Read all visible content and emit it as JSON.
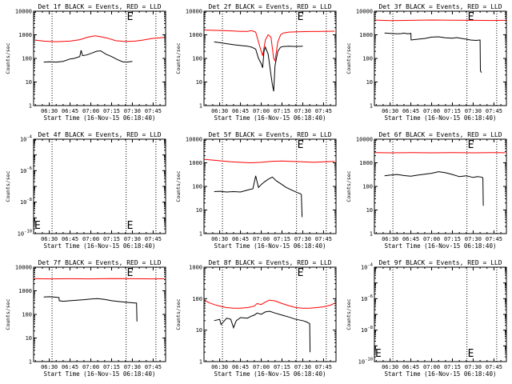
{
  "x_axis": {
    "ticks": [
      {
        "t": 30,
        "label": "06:30"
      },
      {
        "t": 45,
        "label": "06:45"
      },
      {
        "t": 60,
        "label": "07:00"
      },
      {
        "t": 75,
        "label": "07:15"
      },
      {
        "t": 90,
        "label": "07:30"
      },
      {
        "t": 105,
        "label": "07:45"
      }
    ],
    "range_minutes_after_0600": [
      18.67,
      114
    ],
    "minor_step_minutes": 5,
    "xlabel": "Start Time (16-Nov-15 06:18:40)",
    "vlines_minutes_after_0600": [
      32,
      85.5,
      107
    ]
  },
  "ylabel": "Counts/sec",
  "colors": {
    "events": "#000000",
    "lld": "#ff0000",
    "vline": "#000000"
  },
  "chart_data": [
    {
      "type": "line",
      "id": "det1f",
      "title": "Det 1f BLACK = Events, RED = LLD",
      "ylim": [
        1,
        10000
      ],
      "scale": "log",
      "yticks": [
        "1",
        "10",
        "100",
        "1000",
        "10000"
      ],
      "marker": "E",
      "marker_t": 85.5,
      "marker_pos": "top",
      "series": [
        {
          "name": "LLD",
          "color": "#ff0000",
          "x": [
            19,
            26,
            35,
            45,
            52,
            58,
            63,
            67,
            72,
            78,
            85,
            92,
            98,
            104,
            110,
            113
          ],
          "y": [
            600,
            540,
            510,
            540,
            620,
            800,
            900,
            830,
            720,
            560,
            520,
            540,
            600,
            700,
            750,
            780
          ]
        },
        {
          "name": "Events",
          "color": "#000000",
          "x": [
            26,
            30,
            35,
            40,
            45,
            48,
            52,
            53,
            54,
            57,
            61,
            64,
            67,
            71,
            75,
            79,
            83,
            86,
            90
          ],
          "y": [
            70,
            72,
            70,
            75,
            95,
            100,
            120,
            220,
            130,
            140,
            170,
            200,
            210,
            150,
            120,
            90,
            72,
            70,
            75
          ]
        }
      ]
    },
    {
      "type": "line",
      "id": "det2f",
      "title": "Det 2f BLACK = Events, RED = LLD",
      "ylim": [
        1,
        10000
      ],
      "scale": "log",
      "yticks": [
        "1",
        "10",
        "100",
        "1000",
        "10000"
      ],
      "marker": "E",
      "marker_t": 85.5,
      "marker_pos": "top",
      "series": [
        {
          "name": "LLD",
          "color": "#ff0000",
          "x": [
            19,
            25,
            33,
            40,
            45,
            50,
            53,
            56,
            58,
            60,
            61,
            63,
            65,
            67,
            69,
            70,
            72,
            74,
            76,
            80,
            86,
            95,
            105,
            113
          ],
          "y": [
            1600,
            1550,
            1500,
            1450,
            1400,
            1400,
            1500,
            1300,
            500,
            200,
            130,
            600,
            1000,
            800,
            100,
            80,
            500,
            1000,
            1200,
            1300,
            1350,
            1380,
            1400,
            1420
          ]
        },
        {
          "name": "Events",
          "color": "#000000",
          "x": [
            26,
            30,
            35,
            40,
            45,
            50,
            53,
            56,
            58,
            60,
            61,
            62,
            63,
            65,
            67,
            68,
            69,
            70,
            72,
            74,
            76,
            80,
            85,
            90
          ],
          "y": [
            500,
            470,
            420,
            380,
            350,
            330,
            300,
            250,
            100,
            60,
            40,
            200,
            300,
            150,
            20,
            8,
            4,
            50,
            200,
            300,
            320,
            330,
            320,
            330
          ]
        }
      ]
    },
    {
      "type": "line",
      "id": "det3f",
      "title": "Det 3f BLACK = Events, RED = LLD",
      "ylim": [
        1,
        10000
      ],
      "scale": "log",
      "yticks": [
        "1",
        "10",
        "100",
        "1000",
        "10000"
      ],
      "marker": "E",
      "marker_t": 85.5,
      "marker_pos": "top",
      "series": [
        {
          "name": "LLD",
          "color": "#ff0000",
          "x": [
            19,
            30,
            45,
            60,
            75,
            90,
            105,
            113
          ],
          "y": [
            4200,
            4000,
            4100,
            4250,
            4150,
            4100,
            4050,
            4100
          ]
        },
        {
          "name": "Events",
          "color": "#000000",
          "x": [
            26,
            30,
            35,
            38,
            40,
            43,
            45,
            45.2,
            50,
            55,
            60,
            65,
            70,
            75,
            78,
            82,
            85,
            88,
            92,
            95,
            95.2,
            96
          ],
          "y": [
            1200,
            1150,
            1100,
            1120,
            1180,
            1100,
            1150,
            600,
            650,
            700,
            800,
            820,
            750,
            720,
            760,
            700,
            650,
            600,
            580,
            600,
            30,
            25
          ]
        }
      ]
    },
    {
      "type": "line",
      "id": "det4f",
      "title": "Det 4f BLACK = Events, RED = LLD",
      "ylim": [
        1e-10,
        0.0001
      ],
      "scale": "log",
      "yticks": [
        "10^-10",
        "10^-8",
        "10^-6",
        "10^-4"
      ],
      "marker": "E",
      "marker_t": 85.5,
      "marker_pos": "bottom",
      "series": []
    },
    {
      "type": "line",
      "id": "det5f",
      "title": "Det 5f BLACK = Events, RED = LLD",
      "ylim": [
        1,
        10000
      ],
      "scale": "log",
      "yticks": [
        "1",
        "10",
        "100",
        "1000",
        "10000"
      ],
      "marker": "E",
      "marker_t": 85.5,
      "marker_pos": "top",
      "series": [
        {
          "name": "LLD",
          "color": "#ff0000",
          "x": [
            19,
            25,
            32,
            38,
            45,
            52,
            60,
            67,
            75,
            82,
            90,
            98,
            105,
            113
          ],
          "y": [
            1400,
            1300,
            1200,
            1100,
            1050,
            1000,
            1050,
            1150,
            1200,
            1150,
            1100,
            1050,
            1100,
            1150
          ]
        },
        {
          "name": "Events",
          "color": "#000000",
          "x": [
            26,
            30,
            35,
            40,
            45,
            50,
            54,
            56,
            58,
            60,
            62,
            65,
            68,
            71,
            75,
            78,
            82,
            86,
            88,
            89,
            89.5
          ],
          "y": [
            60,
            62,
            58,
            60,
            58,
            70,
            80,
            280,
            90,
            120,
            150,
            200,
            250,
            170,
            120,
            90,
            70,
            55,
            50,
            45,
            5
          ]
        }
      ]
    },
    {
      "type": "line",
      "id": "det6f",
      "title": "Det 6f BLACK = Events, RED = LLD",
      "ylim": [
        1,
        10000
      ],
      "scale": "log",
      "yticks": [
        "1",
        "10",
        "100",
        "1000",
        "10000"
      ],
      "marker": "E",
      "marker_t": 85.5,
      "marker_pos": "top",
      "series": [
        {
          "name": "LLD",
          "color": "#ff0000",
          "x": [
            19,
            30,
            45,
            60,
            75,
            90,
            105,
            113
          ],
          "y": [
            2700,
            2650,
            2700,
            2650,
            2700,
            2650,
            2700,
            2680
          ]
        },
        {
          "name": "Events",
          "color": "#000000",
          "x": [
            26,
            30,
            35,
            40,
            45,
            50,
            55,
            60,
            65,
            70,
            75,
            80,
            85,
            90,
            93,
            96,
            97,
            97.3
          ],
          "y": [
            280,
            300,
            320,
            290,
            270,
            300,
            330,
            360,
            420,
            380,
            320,
            260,
            280,
            240,
            260,
            250,
            230,
            15
          ]
        }
      ]
    },
    {
      "type": "line",
      "id": "det7f",
      "title": "Det 7f BLACK = Events, RED = LLD",
      "ylim": [
        1,
        10000
      ],
      "scale": "log",
      "yticks": [
        "1",
        "10",
        "100",
        "1000",
        "10000"
      ],
      "marker": "E",
      "marker_t": 85.5,
      "marker_pos": "top",
      "series": [
        {
          "name": "LLD",
          "color": "#ff0000",
          "x": [
            19,
            30,
            45,
            60,
            75,
            90,
            105,
            113
          ],
          "y": [
            3300,
            3200,
            3250,
            3200,
            3300,
            3250,
            3200,
            3250
          ]
        },
        {
          "name": "Events",
          "color": "#000000",
          "x": [
            26,
            30,
            34,
            37,
            37.2,
            40,
            45,
            50,
            55,
            60,
            65,
            70,
            75,
            80,
            85,
            90,
            93,
            93.3
          ],
          "y": [
            550,
            560,
            540,
            520,
            380,
            360,
            380,
            400,
            420,
            450,
            470,
            430,
            380,
            350,
            330,
            310,
            300,
            50
          ]
        }
      ]
    },
    {
      "type": "line",
      "id": "det8f",
      "title": "Det 8f BLACK = Events, RED = LLD",
      "ylim": [
        1,
        1000
      ],
      "scale": "log",
      "yticks": [
        "1",
        "10",
        "100",
        "1000"
      ],
      "marker": "E",
      "marker_t": 85.5,
      "marker_pos": "top",
      "series": [
        {
          "name": "LLD",
          "color": "#ff0000",
          "x": [
            19,
            22,
            26,
            30,
            35,
            40,
            45,
            50,
            53,
            55,
            57,
            60,
            63,
            66,
            70,
            75,
            80,
            85,
            90,
            95,
            100,
            105,
            110,
            113
          ],
          "y": [
            90,
            75,
            65,
            58,
            52,
            50,
            50,
            52,
            55,
            58,
            70,
            65,
            78,
            90,
            85,
            70,
            60,
            52,
            50,
            50,
            52,
            55,
            62,
            72
          ]
        },
        {
          "name": "Events",
          "color": "#000000",
          "x": [
            26,
            30,
            31,
            35,
            38,
            40,
            42,
            45,
            50,
            53,
            55,
            57,
            60,
            63,
            66,
            70,
            75,
            80,
            85,
            90,
            93,
            94,
            95,
            95.3
          ],
          "y": [
            20,
            22,
            15,
            24,
            22,
            12,
            20,
            25,
            24,
            28,
            30,
            35,
            32,
            38,
            40,
            35,
            30,
            26,
            22,
            20,
            18,
            17,
            16,
            2
          ]
        }
      ]
    },
    {
      "type": "line",
      "id": "det9f",
      "title": "Det 9f BLACK = Events, RED = LLD",
      "ylim": [
        1e-10,
        0.0001
      ],
      "scale": "log",
      "yticks": [
        "10^-10",
        "10^-8",
        "10^-6",
        "10^-4"
      ],
      "marker": "E",
      "marker_t": 85.5,
      "marker_pos": "bottom",
      "series": []
    }
  ]
}
